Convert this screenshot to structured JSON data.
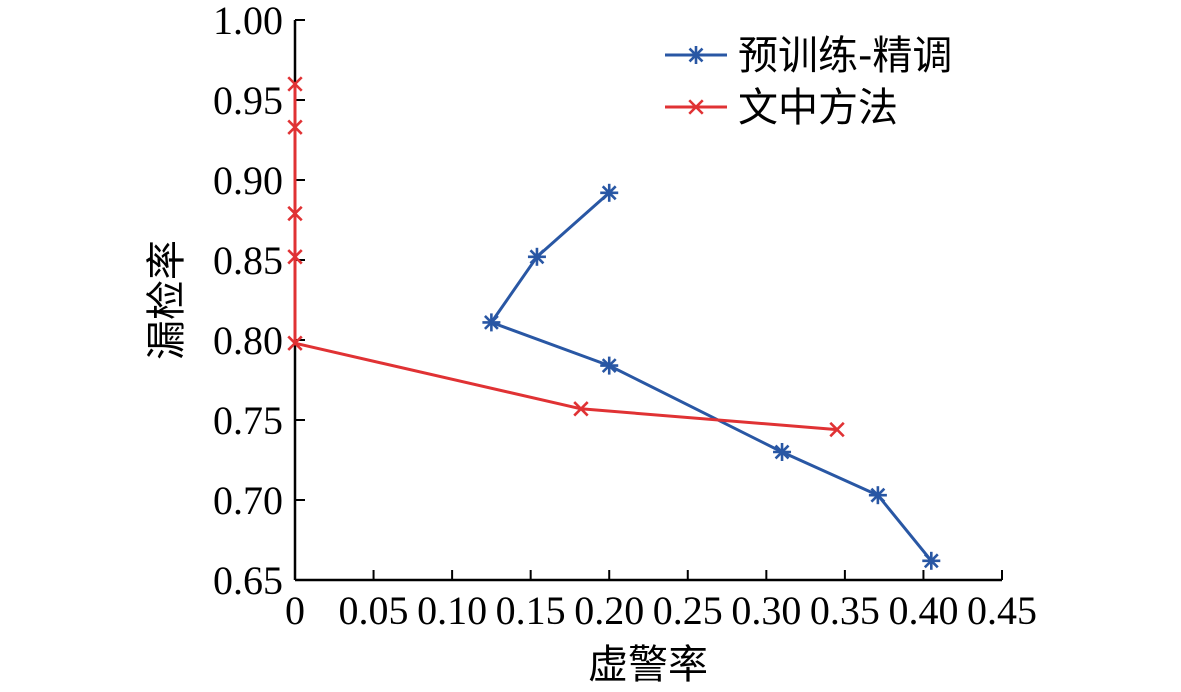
{
  "chart_data": {
    "type": "line",
    "title": "",
    "xlabel": "虚警率",
    "ylabel": "漏检率",
    "xlim": [
      0,
      0.45
    ],
    "ylim": [
      0.65,
      1.0
    ],
    "xticks": [
      "0",
      "0.05",
      "0.10",
      "0.15",
      "0.20",
      "0.25",
      "0.30",
      "0.35",
      "0.40",
      "0.45"
    ],
    "yticks": [
      "0.65",
      "0.70",
      "0.75",
      "0.80",
      "0.85",
      "0.90",
      "0.95",
      "1.00"
    ],
    "grid": false,
    "legend_position": "top-right",
    "series": [
      {
        "name": "预训练-精调",
        "color": "#2957a4",
        "marker": "asterisk",
        "points": [
          {
            "x": 0.2,
            "y": 0.892
          },
          {
            "x": 0.154,
            "y": 0.852
          },
          {
            "x": 0.125,
            "y": 0.811
          },
          {
            "x": 0.2,
            "y": 0.784
          },
          {
            "x": 0.31,
            "y": 0.73
          },
          {
            "x": 0.371,
            "y": 0.703
          },
          {
            "x": 0.405,
            "y": 0.662
          }
        ]
      },
      {
        "name": "文中方法",
        "color": "#e03234",
        "marker": "x",
        "points": [
          {
            "x": 0.0,
            "y": 0.96
          },
          {
            "x": 0.0,
            "y": 0.933
          },
          {
            "x": 0.0,
            "y": 0.879
          },
          {
            "x": 0.0,
            "y": 0.852
          },
          {
            "x": 0.0,
            "y": 0.798
          },
          {
            "x": 0.182,
            "y": 0.757
          },
          {
            "x": 0.345,
            "y": 0.744
          }
        ]
      }
    ]
  }
}
